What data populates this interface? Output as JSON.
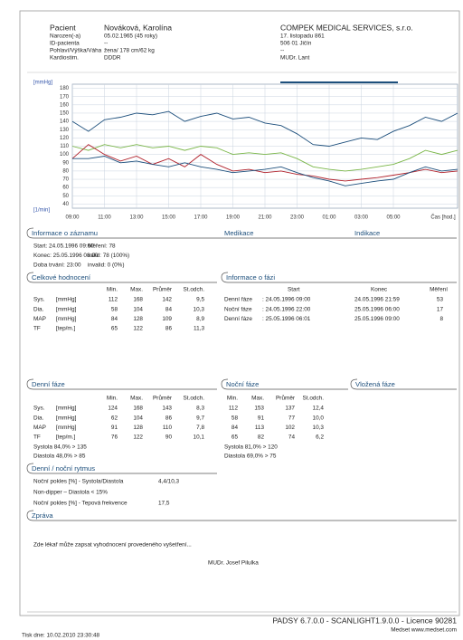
{
  "header": {
    "patient_label": "Pacient",
    "patient_name": "Nováková, Karolína",
    "fields": [
      [
        "Narozen(-a)",
        "05.02.1965 (45 roky)"
      ],
      [
        "ID-pacienta",
        "--"
      ],
      [
        "Pohlaví/Výška/Váha",
        "žena/ 178 cm/62 kg"
      ],
      [
        "Kardiostim.",
        "DDDR"
      ]
    ],
    "company": "COMPEK MEDICAL SERVICES, s.r.o.",
    "address": [
      "17. listopadu 861",
      "506 01 Jičín",
      "--",
      "MUDr. Lant"
    ]
  },
  "chart_data": {
    "type": "line",
    "ylabel_top": "[mmHg]",
    "ylabel_bottom": "[1/min]",
    "xlabel": "Čas [hod.]",
    "x": [
      9,
      10,
      11,
      12,
      13,
      14,
      15,
      16,
      17,
      18,
      19,
      20,
      21,
      22,
      23,
      24,
      25,
      26,
      27,
      28,
      29,
      30,
      31,
      32,
      33
    ],
    "xlim": [
      9,
      33
    ],
    "xticks": [
      {
        "value": 9,
        "label": "09:00"
      },
      {
        "value": 11,
        "label": "11:00"
      },
      {
        "value": 13,
        "label": "13:00"
      },
      {
        "value": 15,
        "label": "15:00"
      },
      {
        "value": 17,
        "label": "17:00"
      },
      {
        "value": 19,
        "label": "19:00"
      },
      {
        "value": 21,
        "label": "21:00"
      },
      {
        "value": 23,
        "label": "23:00"
      },
      {
        "value": 25,
        "label": "01:00"
      },
      {
        "value": 27,
        "label": "03:00"
      },
      {
        "value": 29,
        "label": "05:00"
      }
    ],
    "ylim": [
      35,
      185
    ],
    "yticks": [
      40,
      50,
      60,
      70,
      80,
      90,
      100,
      110,
      120,
      130,
      140,
      150,
      160,
      170,
      180
    ],
    "grid": true,
    "series": [
      {
        "color": "#1d4f7c",
        "values": [
          140,
          128,
          142,
          145,
          150,
          148,
          152,
          140,
          146,
          150,
          143,
          145,
          138,
          135,
          125,
          112,
          110,
          115,
          120,
          118,
          128,
          135,
          145,
          140,
          150
        ]
      },
      {
        "color": "#7ab648",
        "values": [
          110,
          105,
          112,
          108,
          112,
          108,
          110,
          105,
          110,
          108,
          100,
          102,
          100,
          102,
          95,
          85,
          82,
          80,
          82,
          85,
          88,
          95,
          105,
          100,
          105
        ]
      },
      {
        "color": "#b0202a",
        "values": [
          95,
          112,
          100,
          92,
          98,
          88,
          95,
          85,
          100,
          88,
          80,
          82,
          78,
          80,
          76,
          74,
          70,
          68,
          70,
          72,
          75,
          78,
          82,
          78,
          80
        ]
      },
      {
        "color": "#1d4f7c",
        "values": [
          95,
          95,
          98,
          90,
          92,
          88,
          85,
          90,
          85,
          82,
          78,
          80,
          82,
          85,
          78,
          72,
          68,
          62,
          65,
          68,
          70,
          78,
          85,
          80,
          82
        ]
      }
    ]
  },
  "record": {
    "title": "Informace o záznamu",
    "medication_title": "Medikace",
    "indication_title": "Indikace",
    "rows": [
      [
        "Start: 24.05.1996 09:00",
        "Měření: 78"
      ],
      [
        "Konec: 25.05.1996 08:00",
        "valid:  78 (100%)"
      ],
      [
        "Doba trvání: 23:00",
        "invalid:  0 (0%)"
      ]
    ]
  },
  "overall": {
    "title": "Celkové hodnocení",
    "header": [
      "Min.",
      "Max.",
      "Průměr",
      "St.odch."
    ],
    "rows": [
      [
        "Sys.",
        "[mmHg]",
        "112",
        "168",
        "142",
        "9,5"
      ],
      [
        "Dia.",
        "[mmHg]",
        "58",
        "104",
        "84",
        "10,3"
      ],
      [
        "MAP",
        "[mmHg]",
        "84",
        "128",
        "109",
        "8,9"
      ],
      [
        "TF",
        "[tep/m.]",
        "65",
        "122",
        "86",
        "11,3"
      ]
    ]
  },
  "phases": {
    "title": "Informace o fázi",
    "header": [
      "Start",
      "Konec",
      "Měření"
    ],
    "rows": [
      [
        "Denní fáze",
        ": 24.05.1996 09:00",
        "24.05.1996 21:59",
        "53"
      ],
      [
        "Noční fáze",
        ": 24.05.1996 22:00",
        "25.05.1996 06:00",
        "17"
      ],
      [
        "Denní fáze",
        ": 25.05.1996 06:01",
        "25.05.1996 09:00",
        "8"
      ]
    ]
  },
  "day": {
    "title": "Denní fáze",
    "header": [
      "Min.",
      "Max.",
      "Průměr",
      "St.odch."
    ],
    "rows": [
      [
        "Sys.",
        "[mmHg]",
        "124",
        "168",
        "143",
        "8,3"
      ],
      [
        "Dia.",
        "[mmHg]",
        "62",
        "104",
        "86",
        "9,7"
      ],
      [
        "MAP",
        "[mmHg]",
        "91",
        "128",
        "110",
        "7,8"
      ],
      [
        "TF",
        "[tep/m.]",
        "76",
        "122",
        "90",
        "10,1"
      ]
    ],
    "notes": [
      "Systola 84,0% > 135",
      "Diastola 48,0% > 85"
    ]
  },
  "night": {
    "title": "Noční fáze",
    "header": [
      "Min.",
      "Max.",
      "Průměr",
      "St.odch."
    ],
    "rows": [
      [
        "112",
        "153",
        "137",
        "12,4"
      ],
      [
        "58",
        "91",
        "77",
        "10,0"
      ],
      [
        "84",
        "113",
        "102",
        "10,3"
      ],
      [
        "65",
        "82",
        "74",
        "6,2"
      ]
    ],
    "notes": [
      "Systola 81,0% > 120",
      "Diastola 69,0% > 75"
    ]
  },
  "inserted": {
    "title": "Vložená fáze"
  },
  "rhythm": {
    "title": "Denní / noční rytmus",
    "rows": [
      [
        "Noční pokles [%] - Systola/Diastola",
        "4,4/10,3"
      ],
      [
        "Non-dipper – Diastola < 15%"
      ],
      [
        "Noční pokles [%] - Tepová frekvence",
        "17,5"
      ]
    ]
  },
  "report": {
    "title": "Zpráva",
    "text": "Zde lékař může zapsat vyhodnocení provedeného vyšetření...",
    "doctor": "MUDr. Josef Pilulka"
  },
  "footer": {
    "software": "PADSY 6.7.0.0 - SCANLIGHT1.9.0.0 - Licence  90281",
    "vendor": "Medset  www.medset.com",
    "printed": "Tisk dne: 10.02.2010 23:30:48"
  }
}
